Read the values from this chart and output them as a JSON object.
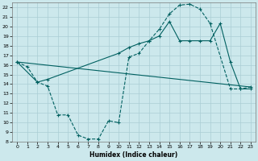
{
  "bg_color": "#cce8ec",
  "grid_color": "#aacdd4",
  "line_color": "#006060",
  "xlabel": "Humidex (Indice chaleur)",
  "xlim": [
    -0.5,
    23.5
  ],
  "ylim": [
    8,
    22.5
  ],
  "yticks": [
    8,
    9,
    10,
    11,
    12,
    13,
    14,
    15,
    16,
    17,
    18,
    19,
    20,
    21,
    22
  ],
  "xticks": [
    0,
    1,
    2,
    3,
    4,
    5,
    6,
    7,
    8,
    9,
    10,
    11,
    12,
    13,
    14,
    15,
    16,
    17,
    18,
    19,
    20,
    21,
    22,
    23
  ],
  "curve1_x": [
    0,
    1,
    2,
    3,
    4,
    5,
    6,
    7,
    8,
    9,
    10,
    11,
    12,
    13,
    14,
    15,
    16,
    17,
    18,
    19,
    21,
    22,
    23
  ],
  "curve1_y": [
    16.3,
    15.8,
    14.2,
    13.8,
    10.8,
    10.8,
    8.7,
    8.3,
    8.3,
    10.2,
    10.0,
    16.8,
    17.2,
    18.5,
    19.7,
    21.3,
    22.2,
    22.3,
    21.8,
    20.3,
    13.5,
    13.5,
    13.7
  ],
  "curve2_x": [
    0,
    2,
    3,
    10,
    11,
    12,
    13,
    14,
    15,
    16,
    17,
    18,
    19,
    20,
    21,
    22,
    23
  ],
  "curve2_y": [
    16.3,
    14.2,
    14.5,
    17.2,
    17.8,
    18.2,
    18.5,
    19.0,
    20.5,
    18.5,
    18.5,
    18.5,
    18.5,
    20.3,
    16.3,
    13.5,
    13.5
  ],
  "curve3_x": [
    0,
    23
  ],
  "curve3_y": [
    16.3,
    13.7
  ]
}
